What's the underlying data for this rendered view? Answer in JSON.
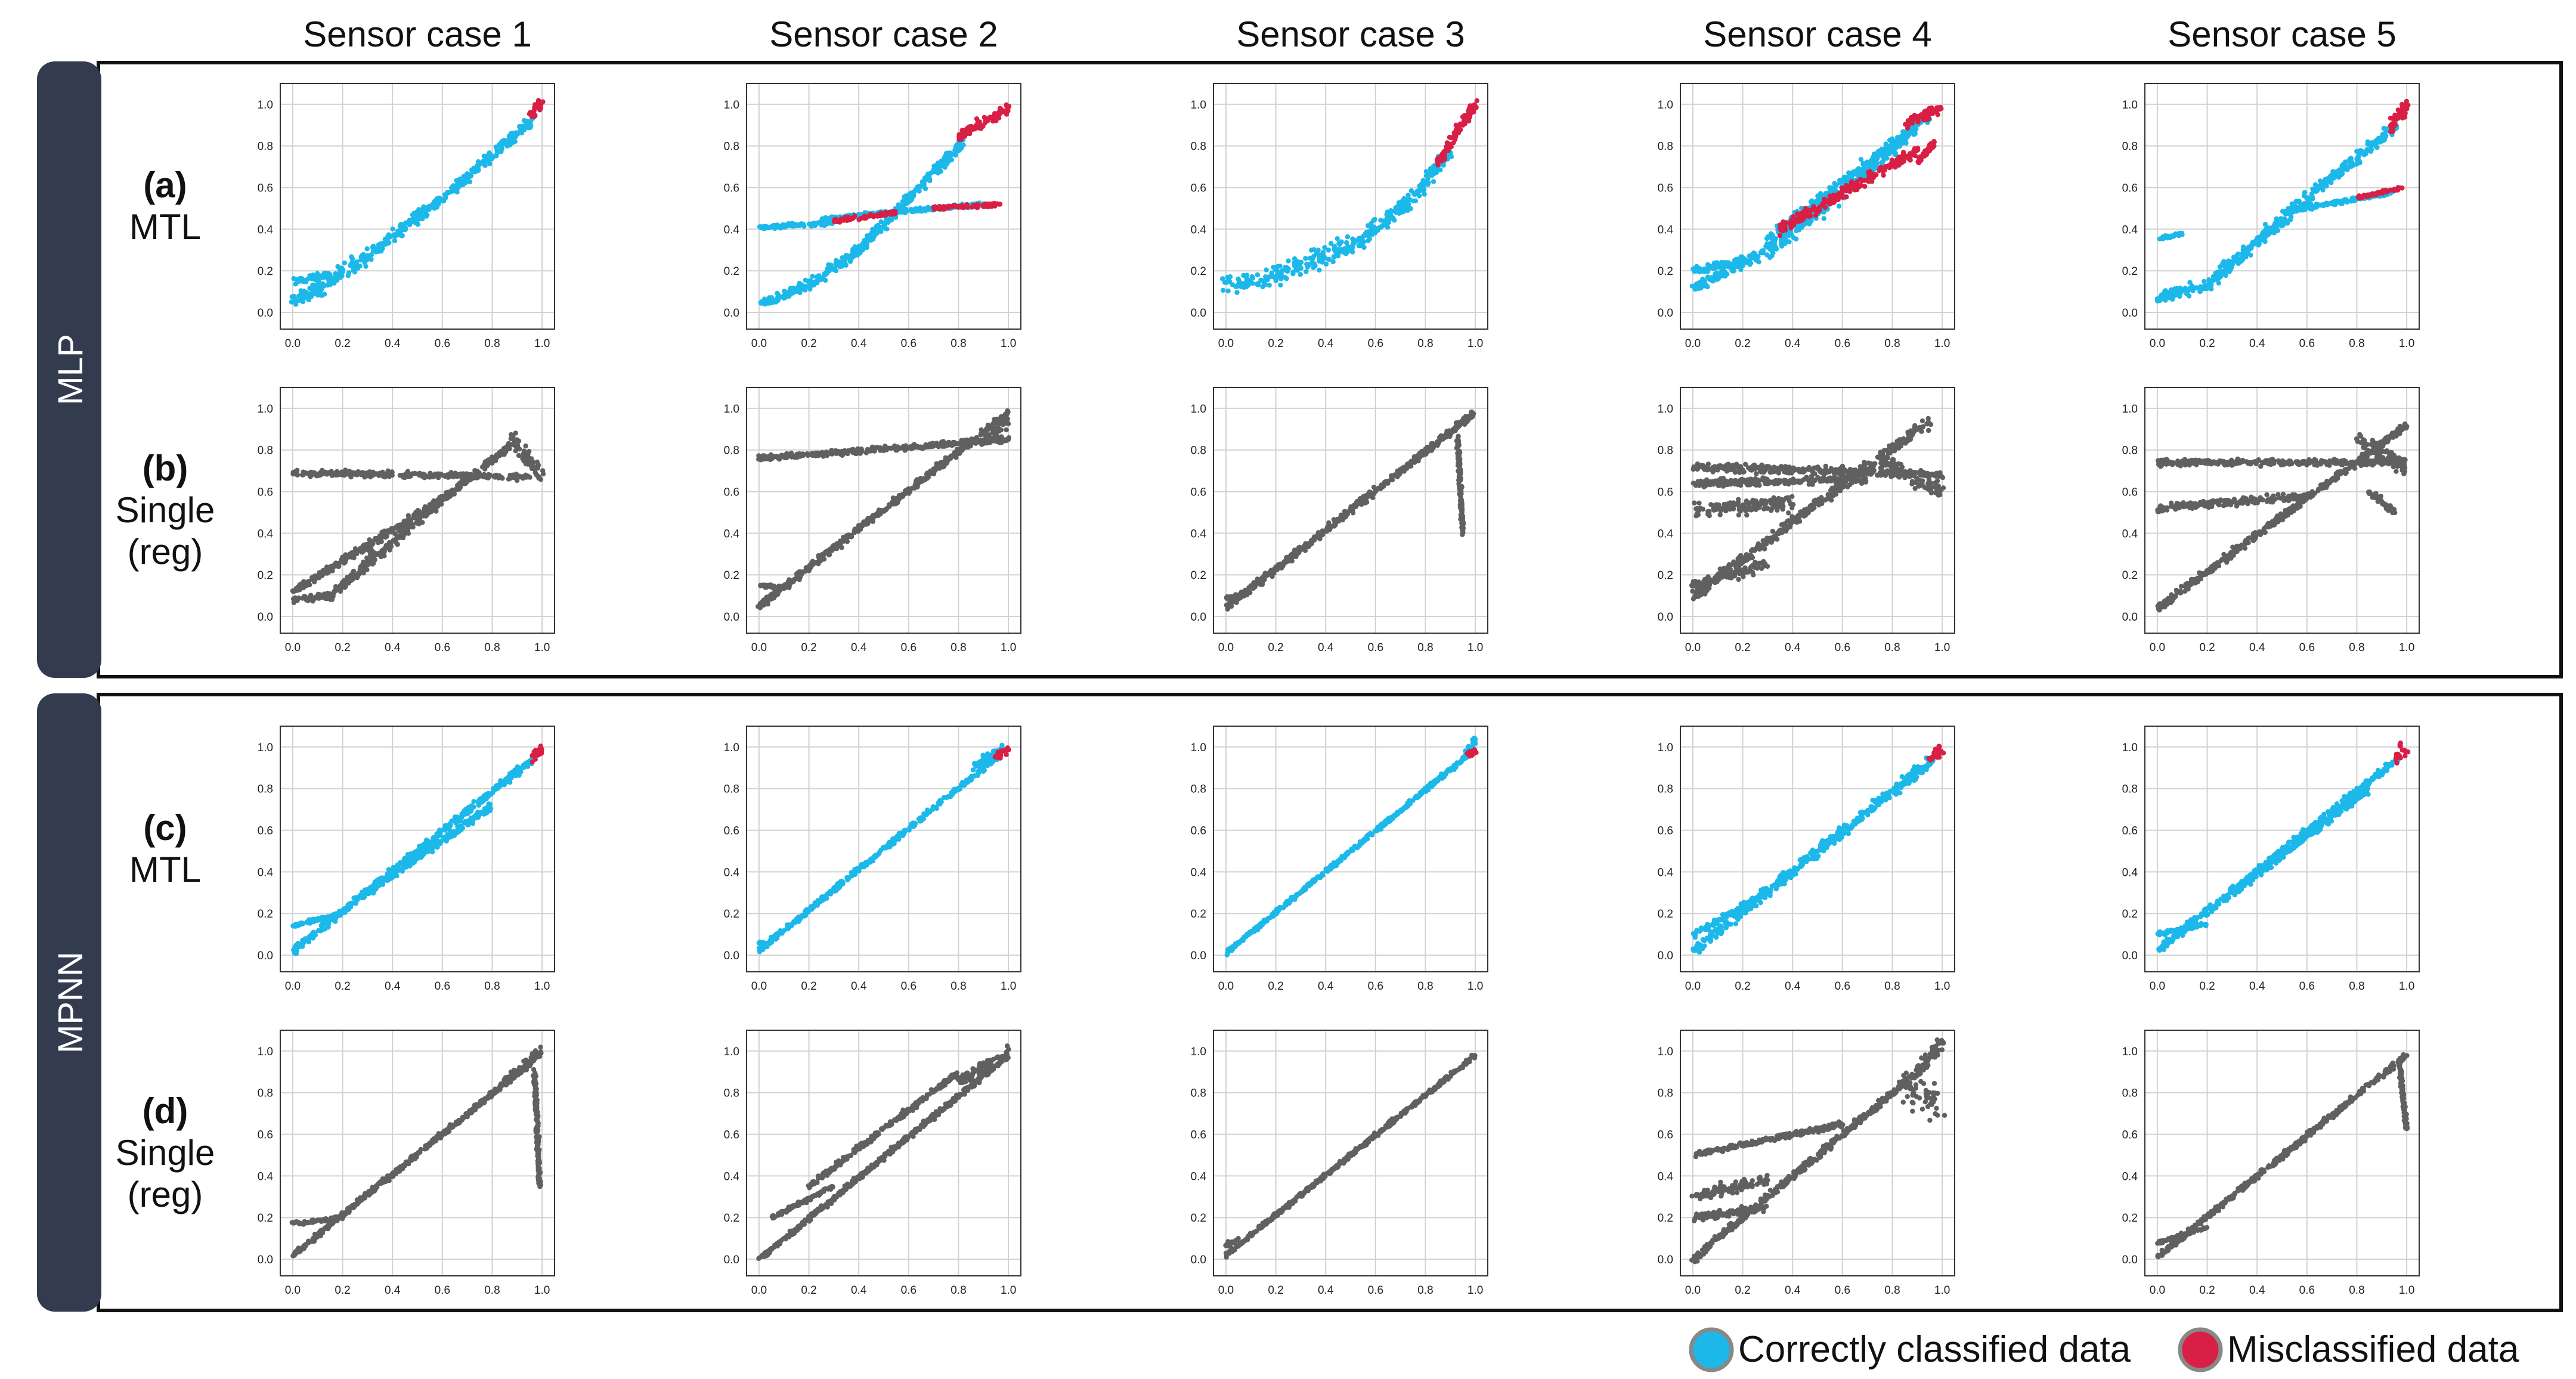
{
  "columns": [
    "Sensor case 1",
    "Sensor case 2",
    "Sensor case 3",
    "Sensor case 4",
    "Sensor case 5"
  ],
  "groups": [
    {
      "label": "MLP",
      "rows": [
        {
          "tag": "(a)",
          "name": [
            "MTL"
          ]
        },
        {
          "tag": "(b)",
          "name": [
            "Single",
            "(reg)"
          ]
        }
      ]
    },
    {
      "label": "MPNN",
      "rows": [
        {
          "tag": "(c)",
          "name": [
            "MTL"
          ]
        },
        {
          "tag": "(d)",
          "name": [
            "Single",
            "(reg)"
          ]
        }
      ]
    }
  ],
  "legend": [
    {
      "label": "Correctly classified data",
      "color": "#1cb8ea"
    },
    {
      "label": "Misclassified data",
      "color": "#d81f45"
    }
  ],
  "colors": {
    "correct": "#1cb8ea",
    "misclassified": "#d81f45",
    "single": "#606060",
    "group_bar": "#333c4f",
    "grid": "#d2d2d2"
  },
  "chart_data": {
    "type": "scatter",
    "layout": "grid 4 rows x 5 columns",
    "x_ticks": [
      0.0,
      0.2,
      0.4,
      0.6,
      0.8,
      1.0
    ],
    "x_tick_labels": [
      "0.0",
      "0.2",
      "0.4",
      "0.6",
      "0.8",
      "1.0"
    ],
    "y_ticks": [
      0.0,
      0.2,
      0.4,
      0.6,
      0.8,
      1.0
    ],
    "y_tick_labels": [
      "0.0",
      "0.2",
      "0.4",
      "0.6",
      "0.8",
      "1.0"
    ],
    "xlim": [
      -0.05,
      1.05
    ],
    "ylim": [
      -0.08,
      1.1
    ],
    "panels": [
      {
        "row": 0,
        "col": 0,
        "series": [
          {
            "name": "correct",
            "segments": [
              [
                0.0,
                0.05,
                0.1,
                0.11,
                0.04
              ],
              [
                0.1,
                0.11,
                0.3,
                0.27,
                0.04
              ],
              [
                0.3,
                0.27,
                0.6,
                0.55,
                0.03
              ],
              [
                0.6,
                0.55,
                0.96,
                0.92,
                0.03
              ],
              [
                0.0,
                0.15,
                0.15,
                0.18,
                0.02
              ]
            ]
          },
          {
            "name": "misclassified",
            "segments": [
              [
                0.95,
                0.95,
                1.0,
                1.0,
                0.03
              ]
            ]
          }
        ]
      },
      {
        "row": 0,
        "col": 1,
        "series": [
          {
            "name": "correct",
            "segments": [
              [
                0.0,
                0.04,
                0.2,
                0.13,
                0.03
              ],
              [
                0.2,
                0.13,
                0.4,
                0.3,
                0.03
              ],
              [
                0.4,
                0.3,
                0.6,
                0.55,
                0.03
              ],
              [
                0.6,
                0.55,
                0.82,
                0.82,
                0.03
              ],
              [
                0.0,
                0.41,
                0.3,
                0.43,
                0.01
              ],
              [
                0.25,
                0.45,
                0.9,
                0.52,
                0.01
              ]
            ]
          },
          {
            "name": "misclassified",
            "segments": [
              [
                0.8,
                0.85,
                1.0,
                0.98,
                0.03
              ],
              [
                0.3,
                0.44,
                0.55,
                0.48,
                0.01
              ],
              [
                0.7,
                0.5,
                0.97,
                0.52,
                0.01
              ]
            ]
          }
        ]
      },
      {
        "row": 0,
        "col": 2,
        "series": [
          {
            "name": "correct",
            "segments": [
              [
                0.0,
                0.13,
                0.2,
                0.18,
                0.05
              ],
              [
                0.2,
                0.18,
                0.5,
                0.32,
                0.06
              ],
              [
                0.5,
                0.32,
                0.75,
                0.55,
                0.05
              ],
              [
                0.75,
                0.55,
                0.9,
                0.78,
                0.04
              ]
            ]
          },
          {
            "name": "misclassified",
            "segments": [
              [
                0.85,
                0.72,
                1.0,
                1.0,
                0.03
              ]
            ]
          }
        ]
      },
      {
        "row": 0,
        "col": 3,
        "series": [
          {
            "name": "correct",
            "segments": [
              [
                0.0,
                0.12,
                0.3,
                0.3,
                0.03
              ],
              [
                0.3,
                0.3,
                0.7,
                0.68,
                0.05
              ],
              [
                0.7,
                0.68,
                0.95,
                0.95,
                0.04
              ],
              [
                0.3,
                0.35,
                0.9,
                0.9,
                0.03
              ],
              [
                0.0,
                0.2,
                0.2,
                0.25,
                0.02
              ]
            ]
          },
          {
            "name": "misclassified",
            "segments": [
              [
                0.35,
                0.4,
                0.9,
                0.78,
                0.03
              ],
              [
                0.85,
                0.9,
                1.0,
                0.99,
                0.03
              ],
              [
                0.9,
                0.72,
                0.97,
                0.82,
                0.02
              ]
            ]
          }
        ]
      },
      {
        "row": 0,
        "col": 4,
        "series": [
          {
            "name": "correct",
            "segments": [
              [
                0.0,
                0.07,
                0.2,
                0.13,
                0.03
              ],
              [
                0.2,
                0.13,
                0.6,
                0.55,
                0.04
              ],
              [
                0.6,
                0.55,
                0.96,
                0.9,
                0.03
              ],
              [
                0.0,
                0.35,
                0.1,
                0.38,
                0.01
              ],
              [
                0.5,
                0.48,
                0.95,
                0.58,
                0.01
              ]
            ]
          },
          {
            "name": "misclassified",
            "segments": [
              [
                0.93,
                0.88,
                1.0,
                1.0,
                0.04
              ],
              [
                0.8,
                0.55,
                0.98,
                0.6,
                0.01
              ]
            ]
          }
        ]
      },
      {
        "row": 1,
        "col": 0,
        "series": [
          {
            "name": "single",
            "segments": [
              [
                0.0,
                0.08,
                0.15,
                0.1,
                0.02
              ],
              [
                0.15,
                0.1,
                0.6,
                0.56,
                0.03
              ],
              [
                0.6,
                0.56,
                0.9,
                0.85,
                0.02
              ],
              [
                0.0,
                0.12,
                0.6,
                0.56,
                0.02
              ],
              [
                0.0,
                0.69,
                0.95,
                0.67,
                0.015
              ],
              [
                0.88,
                0.85,
                1.0,
                0.68,
                0.05
              ]
            ]
          }
        ]
      },
      {
        "row": 1,
        "col": 1,
        "series": [
          {
            "name": "single",
            "segments": [
              [
                0.0,
                0.05,
                1.0,
                0.98,
                0.02
              ],
              [
                0.0,
                0.76,
                1.0,
                0.85,
                0.015
              ],
              [
                0.0,
                0.15,
                0.1,
                0.14,
                0.01
              ],
              [
                0.9,
                0.85,
                1.0,
                0.95,
                0.04
              ]
            ]
          }
        ]
      },
      {
        "row": 1,
        "col": 2,
        "series": [
          {
            "name": "single",
            "segments": [
              [
                0.0,
                0.04,
                1.0,
                0.98,
                0.02
              ],
              [
                0.0,
                0.09,
                0.05,
                0.1,
                0.01
              ],
              [
                0.93,
                0.85,
                0.95,
                0.4,
                0.02
              ]
            ]
          }
        ]
      },
      {
        "row": 1,
        "col": 3,
        "series": [
          {
            "name": "single",
            "segments": [
              [
                0.0,
                0.1,
                0.95,
                0.94,
                0.03
              ],
              [
                0.0,
                0.72,
                1.0,
                0.68,
                0.02
              ],
              [
                0.0,
                0.64,
                0.7,
                0.66,
                0.02
              ],
              [
                0.0,
                0.5,
                0.4,
                0.55,
                0.04
              ],
              [
                0.75,
                0.75,
                1.0,
                0.6,
                0.04
              ],
              [
                0.0,
                0.15,
                0.3,
                0.25,
                0.03
              ]
            ]
          }
        ]
      },
      {
        "row": 1,
        "col": 4,
        "series": [
          {
            "name": "single",
            "segments": [
              [
                0.0,
                0.04,
                1.0,
                0.92,
                0.02
              ],
              [
                0.0,
                0.74,
                1.0,
                0.74,
                0.015
              ],
              [
                0.0,
                0.52,
                0.6,
                0.58,
                0.02
              ],
              [
                0.8,
                0.85,
                1.0,
                0.72,
                0.05
              ],
              [
                0.85,
                0.6,
                0.95,
                0.5,
                0.02
              ]
            ]
          }
        ]
      },
      {
        "row": 2,
        "col": 0,
        "series": [
          {
            "name": "correct",
            "segments": [
              [
                0.0,
                0.02,
                0.96,
                0.94,
                0.02
              ],
              [
                0.0,
                0.14,
                0.2,
                0.2,
                0.01
              ],
              [
                0.3,
                0.3,
                0.8,
                0.72,
                0.02
              ]
            ]
          },
          {
            "name": "misclassified",
            "segments": [
              [
                0.96,
                0.95,
                1.0,
                1.0,
                0.03
              ]
            ]
          }
        ]
      },
      {
        "row": 2,
        "col": 1,
        "series": [
          {
            "name": "correct",
            "segments": [
              [
                0.0,
                0.02,
                0.96,
                0.96,
                0.015
              ],
              [
                0.0,
                0.06,
                0.03,
                0.05,
                0.01
              ],
              [
                0.85,
                0.9,
                0.98,
                1.0,
                0.02
              ]
            ]
          },
          {
            "name": "misclassified",
            "segments": [
              [
                0.95,
                0.95,
                1.0,
                0.99,
                0.02
              ]
            ]
          }
        ]
      },
      {
        "row": 2,
        "col": 2,
        "series": [
          {
            "name": "correct",
            "segments": [
              [
                0.0,
                0.01,
                0.97,
                0.96,
                0.012
              ],
              [
                0.95,
                0.95,
                1.0,
                1.03,
                0.02
              ]
            ]
          },
          {
            "name": "misclassified",
            "segments": [
              [
                0.97,
                0.96,
                1.0,
                0.99,
                0.02
              ]
            ]
          }
        ]
      },
      {
        "row": 2,
        "col": 3,
        "series": [
          {
            "name": "correct",
            "segments": [
              [
                0.0,
                0.02,
                0.96,
                0.94,
                0.03
              ],
              [
                0.0,
                0.1,
                0.3,
                0.3,
                0.02
              ]
            ]
          },
          {
            "name": "misclassified",
            "segments": [
              [
                0.95,
                0.93,
                1.0,
                1.0,
                0.04
              ]
            ]
          }
        ]
      },
      {
        "row": 2,
        "col": 4,
        "series": [
          {
            "name": "correct",
            "segments": [
              [
                0.0,
                0.02,
                0.96,
                0.94,
                0.02
              ],
              [
                0.0,
                0.1,
                0.2,
                0.15,
                0.01
              ],
              [
                0.3,
                0.3,
                0.85,
                0.8,
                0.02
              ]
            ]
          },
          {
            "name": "misclassified",
            "segments": [
              [
                0.96,
                0.95,
                1.0,
                1.0,
                0.04
              ]
            ]
          }
        ]
      },
      {
        "row": 3,
        "col": 0,
        "series": [
          {
            "name": "single",
            "segments": [
              [
                0.0,
                0.02,
                0.96,
                0.95,
                0.015
              ],
              [
                0.0,
                0.17,
                0.2,
                0.2,
                0.01
              ],
              [
                0.85,
                0.85,
                1.0,
                1.0,
                0.03
              ],
              [
                0.97,
                0.9,
                0.99,
                0.35,
                0.02
              ]
            ]
          }
        ]
      },
      {
        "row": 3,
        "col": 1,
        "series": [
          {
            "name": "single",
            "segments": [
              [
                0.0,
                0.0,
                1.0,
                0.98,
                0.015
              ],
              [
                0.05,
                0.2,
                0.3,
                0.35,
                0.01
              ],
              [
                0.2,
                0.35,
                0.8,
                0.9,
                0.015
              ],
              [
                0.8,
                0.85,
                1.0,
                1.0,
                0.03
              ]
            ]
          }
        ]
      },
      {
        "row": 3,
        "col": 2,
        "series": [
          {
            "name": "single",
            "segments": [
              [
                0.0,
                0.02,
                1.0,
                0.98,
                0.012
              ],
              [
                0.0,
                0.07,
                0.05,
                0.09,
                0.01
              ]
            ]
          }
        ]
      },
      {
        "row": 3,
        "col": 3,
        "series": [
          {
            "name": "single",
            "segments": [
              [
                0.0,
                0.0,
                0.95,
                0.95,
                0.02
              ],
              [
                0.0,
                0.5,
                0.6,
                0.65,
                0.015
              ],
              [
                0.0,
                0.3,
                0.3,
                0.38,
                0.03
              ],
              [
                0.0,
                0.2,
                0.3,
                0.25,
                0.02
              ],
              [
                0.85,
                0.8,
                1.0,
                0.75,
                0.1
              ],
              [
                0.9,
                0.9,
                1.0,
                1.05,
                0.04
              ]
            ]
          }
        ]
      },
      {
        "row": 3,
        "col": 4,
        "series": [
          {
            "name": "single",
            "segments": [
              [
                0.0,
                0.01,
                1.0,
                0.98,
                0.015
              ],
              [
                0.0,
                0.08,
                0.2,
                0.15,
                0.01
              ],
              [
                0.97,
                0.95,
                1.0,
                0.62,
                0.02
              ]
            ]
          }
        ]
      }
    ]
  }
}
